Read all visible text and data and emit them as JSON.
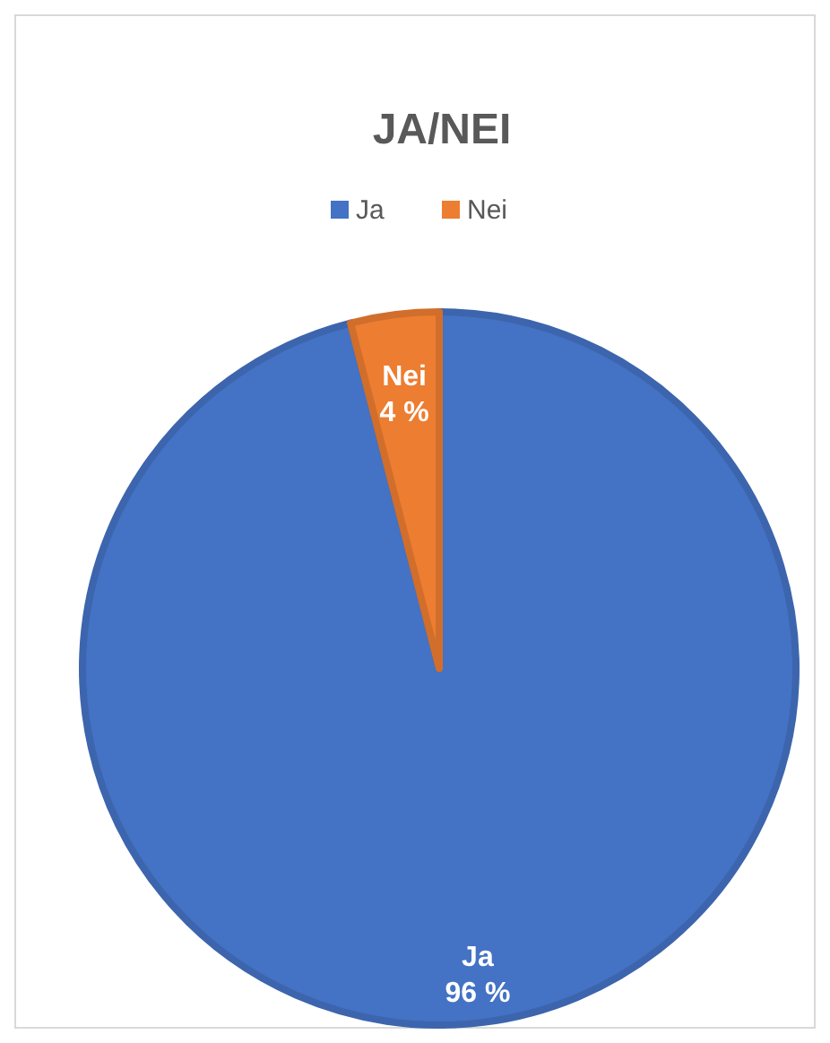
{
  "chart_data": {
    "type": "pie",
    "title": "JA/NEI",
    "categories": [
      "Ja",
      "Nei"
    ],
    "values": [
      96,
      4
    ],
    "colors": [
      "#4472c4",
      "#ed7d31"
    ],
    "value_labels": [
      "96 %",
      "4 %"
    ],
    "data_labels": true,
    "legend": "top"
  }
}
